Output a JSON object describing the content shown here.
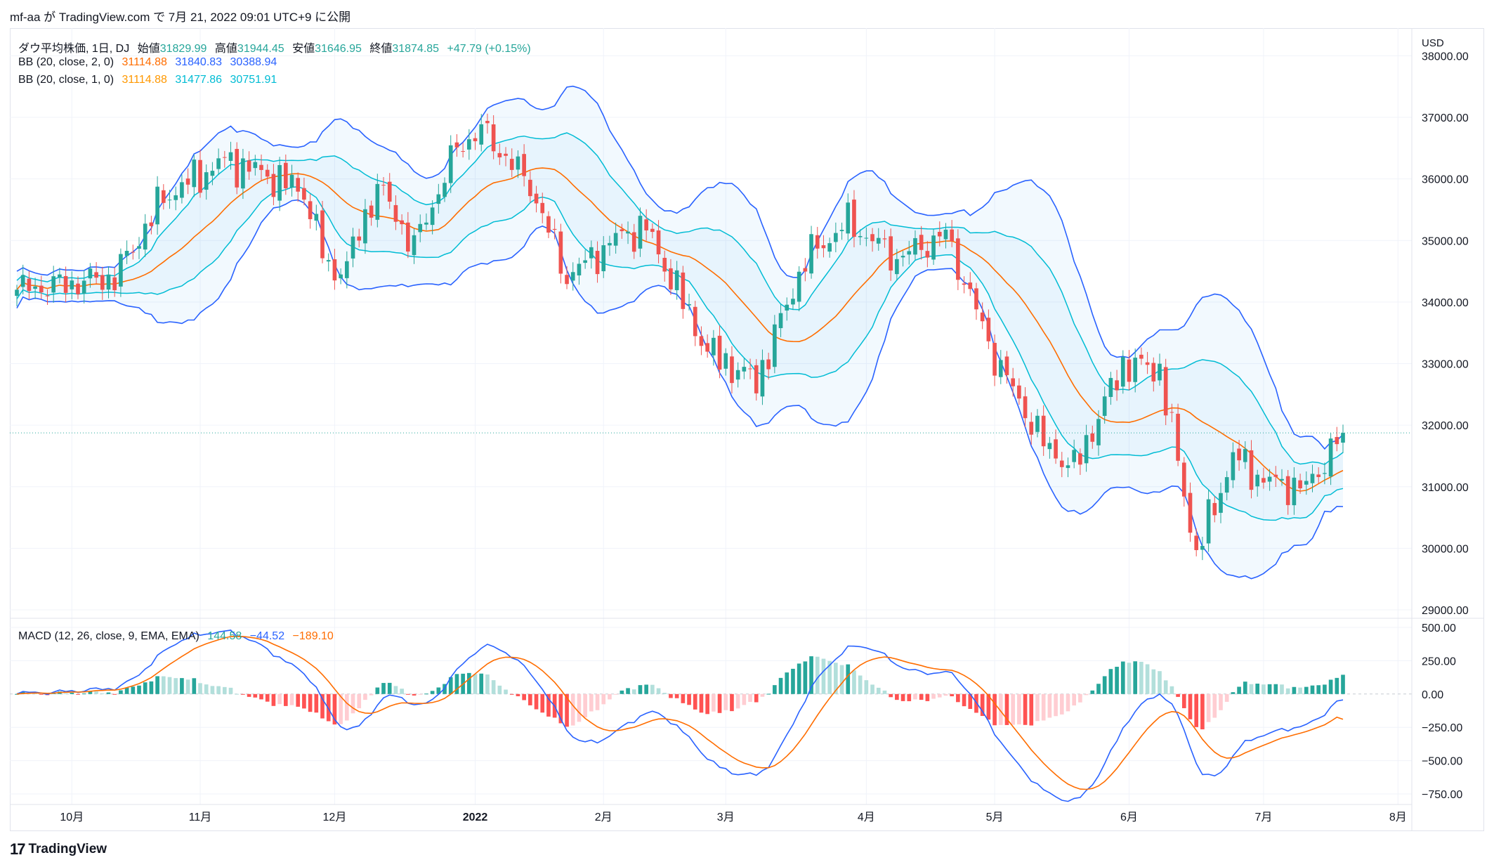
{
  "caption": {
    "text": "mf-aa が TradingView.com で 7月 21, 2022 09:01 UTC+9 に公開"
  },
  "legend": {
    "symbol": "ダウ平均株価, 1日, DJ",
    "open_label": "始値",
    "open": "31829.99",
    "high_label": "高値",
    "high": "31944.45",
    "low_label": "安値",
    "low": "31646.95",
    "close_label": "終値",
    "close": "31874.85",
    "change": "+47.79 (+0.15%)",
    "bb2_label": "BB (20, close, 2, 0)",
    "bb2_basis": "31114.88",
    "bb2_upper": "31840.83",
    "bb2_lower": "30388.94",
    "bb1_label": "BB (20, close, 1, 0)",
    "bb1_basis": "31114.88",
    "bb1_upper": "31477.86",
    "bb1_lower": "30751.91",
    "macd_label": "MACD (12, 26, close, 9, EMA, EMA)",
    "macd_hist": "144.58",
    "macd_line": "−44.52",
    "macd_signal": "−189.10"
  },
  "colors": {
    "up": "#26a69a",
    "down": "#ef5350",
    "basis": "#ff6d00",
    "bb2": "#2962ff",
    "bb1": "#00bcd4",
    "macd": "#2962ff",
    "signal": "#ff6d00",
    "hist_up_strong": "#26a69a",
    "hist_up_weak": "#b2dfdb",
    "hist_down_strong": "#ff5252",
    "hist_down_weak": "#ffcdd2"
  },
  "footer": {
    "brand": "TradingView"
  },
  "chart_data": [
    {
      "type": "candlestick",
      "title": "ダウ平均株価, 1日, DJ",
      "currency": "USD",
      "ylim": [
        29000,
        38000
      ],
      "y_ticks": [
        "38000.00",
        "37000.00",
        "36000.00",
        "35000.00",
        "34000.00",
        "33000.00",
        "32000.00",
        "31000.00",
        "30000.00",
        "29000.00"
      ],
      "x_ticks": [
        "10月",
        "11月",
        "12月",
        "2022",
        "2月",
        "3月",
        "4月",
        "5月",
        "6月",
        "7月",
        "8月"
      ],
      "current_price": 31874.85,
      "keypoints_close": [
        [
          "2021-09-20",
          34200
        ],
        [
          "2021-10-01",
          34300
        ],
        [
          "2021-10-12",
          34400
        ],
        [
          "2021-10-22",
          35700
        ],
        [
          "2021-11-05",
          36300
        ],
        [
          "2021-11-15",
          36100
        ],
        [
          "2021-11-24",
          35800
        ],
        [
          "2021-11-30",
          34500
        ],
        [
          "2021-12-03",
          34600
        ],
        [
          "2021-12-10",
          35900
        ],
        [
          "2021-12-20",
          34900
        ],
        [
          "2021-12-29",
          36500
        ],
        [
          "2022-01-04",
          36800
        ],
        [
          "2022-01-14",
          35900
        ],
        [
          "2022-01-24",
          34400
        ],
        [
          "2022-02-04",
          35100
        ],
        [
          "2022-02-10",
          35200
        ],
        [
          "2022-02-24",
          33200
        ],
        [
          "2022-03-08",
          32700
        ],
        [
          "2022-03-18",
          34700
        ],
        [
          "2022-03-29",
          35300
        ],
        [
          "2022-04-08",
          34700
        ],
        [
          "2022-04-20",
          35100
        ],
        [
          "2022-05-02",
          33100
        ],
        [
          "2022-05-12",
          31700
        ],
        [
          "2022-05-19",
          31300
        ],
        [
          "2022-05-31",
          32990
        ],
        [
          "2022-06-08",
          32900
        ],
        [
          "2022-06-16",
          29900
        ],
        [
          "2022-06-24",
          31500
        ],
        [
          "2022-07-01",
          31100
        ],
        [
          "2022-07-12",
          30980
        ],
        [
          "2022-07-20",
          31875
        ]
      ],
      "bollinger": [
        {
          "name": "BB (20, close, 2, 0)",
          "basis": 31114.88,
          "upper": 31840.83,
          "lower": 30388.94
        },
        {
          "name": "BB (20, close, 1, 0)",
          "basis": 31114.88,
          "upper": 31477.86,
          "lower": 30751.91
        }
      ]
    },
    {
      "type": "bar",
      "title": "MACD (12, 26, close, 9, EMA, EMA)",
      "ylim": [
        -800,
        550
      ],
      "y_ticks": [
        "500.00",
        "250.00",
        "0.00",
        "−250.00",
        "−500.00",
        "−750.00"
      ],
      "latest": {
        "histogram": 144.58,
        "macd": -44.52,
        "signal": -189.1
      }
    }
  ]
}
